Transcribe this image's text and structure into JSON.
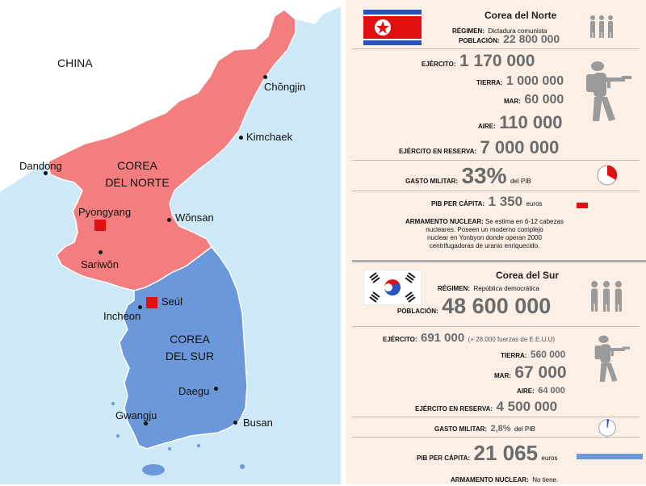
{
  "map": {
    "labels": {
      "china": "CHINA",
      "north_korea": [
        "COREA",
        "DEL NORTE"
      ],
      "south_korea": [
        "COREA",
        "DEL SUR"
      ]
    },
    "cities": {
      "chongjin": "Chŏngjin",
      "kimchaek": "Kimchaek",
      "dandong": "Dandong",
      "pyongyang": "Pyongyang",
      "wonsan": "Wŏnsan",
      "sariwon": "Sariwŏn",
      "seoul": "Seúl",
      "incheon": "Incheon",
      "daegu": "Daegu",
      "gwangju": "Gwangju",
      "busan": "Busan"
    },
    "colors": {
      "sea": "#cde8f6",
      "north": "#f47e7f",
      "south": "#6b98da",
      "china": "#ffffff",
      "capital": "#e01010"
    }
  },
  "north": {
    "name": "Corea del Norte",
    "regime_label": "RÉGIMEN:",
    "regime_value": "Dictadura comunista",
    "population_label": "POBLACIÓN:",
    "population_value": "22 800 000",
    "army_label": "EJÉRCITO:",
    "army_value": "1 170 000",
    "land_label": "TIERRA:",
    "land_value": "1 000 000",
    "sea_label": "MAR:",
    "sea_value": "60 000",
    "air_label": "AIRE:",
    "air_value": "110 000",
    "reserve_label": "EJÉRCITO EN RESERVA:",
    "reserve_value": "7 000 000",
    "spending_label": "GASTO MILITAR:",
    "spending_value": "33%",
    "spending_fraction": 0.33,
    "spending_suffix": "del PIB",
    "gdp_label": "PIB PER CÁPITA:",
    "gdp_value": "1 350",
    "gdp_unit": "euros",
    "nuclear_label": "ARMAMENTO NUCLEAR:",
    "nuclear_lines": [
      "Se estima en 6-12 cabezas",
      "nucleares. Poseen un moderno complejo",
      "nuclear en Yonbyon donde operan 2000",
      "centrifugadoras de uranio enriquecido."
    ]
  },
  "south": {
    "name": "Corea del Sur",
    "regime_label": "RÉGIMEN:",
    "regime_value": "República democrática",
    "population_label": "POBLACIÓN:",
    "population_value": "48 600 000",
    "army_label": "EJÉRCITO:",
    "army_value": "691 000",
    "army_note": "(+ 28.000 fuerzas de E.E.U.U)",
    "land_label": "TIERRA:",
    "land_value": "560 000",
    "sea_label": "MAR:",
    "sea_value": "67 000",
    "air_label": "AIRE:",
    "air_value": "64 000",
    "reserve_label": "EJÉRCITO EN RESERVA:",
    "reserve_value": "4 500 000",
    "spending_label": "GASTO MILITAR:",
    "spending_value": "2,8%",
    "spending_fraction": 0.028,
    "spending_suffix": "del PIB",
    "gdp_label": "PIB PER CÁPITA:",
    "gdp_value": "21 065",
    "gdp_unit": "euros",
    "nuclear_label": "ARMAMENTO NUCLEAR:",
    "nuclear_value": "No tiene."
  },
  "gdp_bars": {
    "north": 1350,
    "south": 21065,
    "max": 21065
  },
  "colors": {
    "panel_bg": "#fbefe6",
    "value_gray": "#6b6b6b",
    "icon_gray": "#9a9a9a",
    "pie_red": "#e01010",
    "bar_red": "#e01010",
    "bar_blue": "#6b98da"
  }
}
